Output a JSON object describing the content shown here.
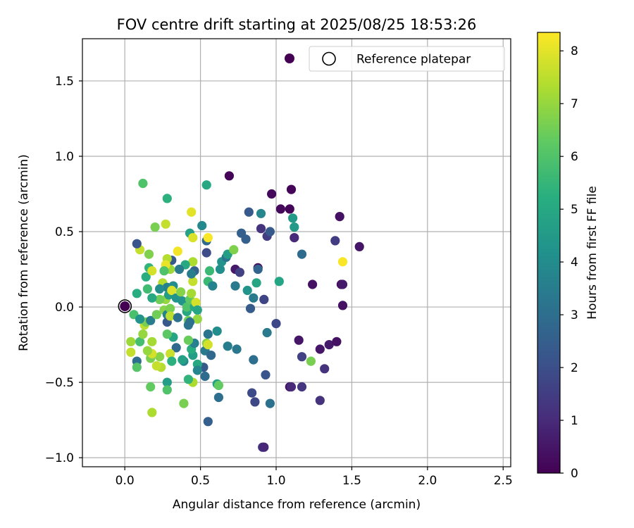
{
  "chart_data": {
    "type": "scatter",
    "title": "FOV centre drift starting at 2025/08/25 18:53:26",
    "xlabel": "Angular distance from reference (arcmin)",
    "ylabel": "Rotation from reference (arcmin)",
    "xlim": [
      -0.28,
      2.55
    ],
    "ylim": [
      -1.06,
      1.78
    ],
    "xticks": [
      0.0,
      0.5,
      1.0,
      1.5,
      2.0,
      2.5
    ],
    "xtick_labels": [
      "0.0",
      "0.5",
      "1.0",
      "1.5",
      "2.0",
      "2.5"
    ],
    "yticks": [
      -1.0,
      -0.5,
      0.0,
      0.5,
      1.0,
      1.5
    ],
    "ytick_labels": [
      "−1.0",
      "−0.5",
      "0.0",
      "0.5",
      "1.0",
      "1.5"
    ],
    "grid": true,
    "legend": {
      "position": "upper-right",
      "entries": [
        "",
        "Reference platepar"
      ]
    },
    "colorbar": {
      "label": "Hours from first FF file",
      "range": [
        0,
        8.35
      ],
      "ticks": [
        0,
        1,
        2,
        3,
        4,
        5,
        6,
        7,
        8
      ],
      "tick_labels": [
        "0",
        "1",
        "2",
        "3",
        "4",
        "5",
        "6",
        "7",
        "8"
      ],
      "colormap": "viridis"
    },
    "reference_point": {
      "x": 0.0,
      "y": 0.0
    },
    "points": [
      {
        "x": 0.69,
        "y": 0.87,
        "c": 0.1
      },
      {
        "x": 0.97,
        "y": 0.75,
        "c": 0.2
      },
      {
        "x": 1.1,
        "y": 0.78,
        "c": 0.1
      },
      {
        "x": 1.03,
        "y": 0.65,
        "c": 0.2
      },
      {
        "x": 1.09,
        "y": 0.65,
        "c": 0.1
      },
      {
        "x": 1.42,
        "y": 0.6,
        "c": 0.4
      },
      {
        "x": 1.55,
        "y": 0.4,
        "c": 0.5
      },
      {
        "x": 1.39,
        "y": 0.44,
        "c": 1.5
      },
      {
        "x": 1.12,
        "y": 0.46,
        "c": 1.0
      },
      {
        "x": 0.9,
        "y": 0.52,
        "c": 1.2
      },
      {
        "x": 0.94,
        "y": 0.47,
        "c": 1.5
      },
      {
        "x": 0.96,
        "y": 0.5,
        "c": 2.3
      },
      {
        "x": 0.82,
        "y": 0.63,
        "c": 2.3
      },
      {
        "x": 0.9,
        "y": 0.62,
        "c": 3.8
      },
      {
        "x": 1.11,
        "y": 0.59,
        "c": 4.5
      },
      {
        "x": 1.12,
        "y": 0.53,
        "c": 4.5
      },
      {
        "x": 0.77,
        "y": 0.49,
        "c": 2.5
      },
      {
        "x": 0.8,
        "y": 0.45,
        "c": 2.5
      },
      {
        "x": 1.17,
        "y": 0.35,
        "c": 2.9
      },
      {
        "x": 1.44,
        "y": 0.3,
        "c": 8.3
      },
      {
        "x": 0.73,
        "y": 0.25,
        "c": 0.6
      },
      {
        "x": 0.76,
        "y": 0.23,
        "c": 1.6
      },
      {
        "x": 0.88,
        "y": 0.26,
        "c": 0.3
      },
      {
        "x": 0.88,
        "y": 0.25,
        "c": 2.7
      },
      {
        "x": 0.87,
        "y": 0.16,
        "c": 4.9
      },
      {
        "x": 1.02,
        "y": 0.17,
        "c": 4.9
      },
      {
        "x": 1.24,
        "y": 0.15,
        "c": 0.4
      },
      {
        "x": 1.43,
        "y": 0.15,
        "c": 0.3
      },
      {
        "x": 1.44,
        "y": 0.15,
        "c": 0.6
      },
      {
        "x": 0.81,
        "y": 0.11,
        "c": 4.3
      },
      {
        "x": 0.85,
        "y": 0.06,
        "c": 3.4
      },
      {
        "x": 0.92,
        "y": 0.05,
        "c": 1.7
      },
      {
        "x": 1.44,
        "y": 0.01,
        "c": 0.4
      },
      {
        "x": 0.83,
        "y": -0.01,
        "c": 2.4
      },
      {
        "x": 1.0,
        "y": -0.11,
        "c": 1.8
      },
      {
        "x": 0.94,
        "y": -0.17,
        "c": 3.4
      },
      {
        "x": 1.15,
        "y": -0.22,
        "c": 0.5
      },
      {
        "x": 1.29,
        "y": -0.28,
        "c": 0.5
      },
      {
        "x": 1.35,
        "y": -0.25,
        "c": 0.6
      },
      {
        "x": 1.4,
        "y": -0.23,
        "c": 0.4
      },
      {
        "x": 1.17,
        "y": -0.33,
        "c": 1.6
      },
      {
        "x": 1.23,
        "y": -0.36,
        "c": 6.6
      },
      {
        "x": 1.32,
        "y": -0.41,
        "c": 1.2
      },
      {
        "x": 0.85,
        "y": -0.35,
        "c": 3.0
      },
      {
        "x": 0.93,
        "y": -0.45,
        "c": 2.2
      },
      {
        "x": 1.09,
        "y": -0.53,
        "c": 0.4
      },
      {
        "x": 1.1,
        "y": -0.53,
        "c": 1.0
      },
      {
        "x": 1.17,
        "y": -0.53,
        "c": 1.3
      },
      {
        "x": 0.84,
        "y": -0.57,
        "c": 1.9
      },
      {
        "x": 0.86,
        "y": -0.63,
        "c": 1.8
      },
      {
        "x": 0.96,
        "y": -0.64,
        "c": 3.1
      },
      {
        "x": 1.29,
        "y": -0.62,
        "c": 1.2
      },
      {
        "x": 0.91,
        "y": -0.93,
        "c": 1.3
      },
      {
        "x": 0.92,
        "y": -0.93,
        "c": 0.9
      },
      {
        "x": 0.68,
        "y": -0.26,
        "c": 3.5
      },
      {
        "x": 0.74,
        "y": -0.28,
        "c": 3.3
      },
      {
        "x": 0.61,
        "y": -0.16,
        "c": 4.0
      },
      {
        "x": 0.62,
        "y": -0.6,
        "c": 3.0
      },
      {
        "x": 0.61,
        "y": -0.51,
        "c": 4.7
      },
      {
        "x": 0.62,
        "y": -0.52,
        "c": 6.3
      },
      {
        "x": 0.55,
        "y": -0.76,
        "c": 2.5
      },
      {
        "x": 0.55,
        "y": -0.18,
        "c": 3.2
      },
      {
        "x": 0.53,
        "y": -0.29,
        "c": 3.4
      },
      {
        "x": 0.57,
        "y": -0.32,
        "c": 2.8
      },
      {
        "x": 0.52,
        "y": -0.4,
        "c": 2.4
      },
      {
        "x": 0.53,
        "y": -0.46,
        "c": 2.9
      },
      {
        "x": 0.54,
        "y": -0.24,
        "c": 6.8
      },
      {
        "x": 0.55,
        "y": -0.25,
        "c": 7.8
      },
      {
        "x": 0.48,
        "y": -0.38,
        "c": 5.0
      },
      {
        "x": 0.45,
        "y": -0.32,
        "c": 4.6
      },
      {
        "x": 0.44,
        "y": -0.28,
        "c": 5.2
      },
      {
        "x": 0.46,
        "y": -0.24,
        "c": 3.6
      },
      {
        "x": 0.42,
        "y": -0.22,
        "c": 6.4
      },
      {
        "x": 0.45,
        "y": -0.5,
        "c": 7.3
      },
      {
        "x": 0.42,
        "y": -0.48,
        "c": 5.4
      },
      {
        "x": 0.39,
        "y": -0.36,
        "c": 3.8
      },
      {
        "x": 0.34,
        "y": -0.27,
        "c": 2.8
      },
      {
        "x": 0.32,
        "y": -0.2,
        "c": 4.9
      },
      {
        "x": 0.28,
        "y": -0.18,
        "c": 6.2
      },
      {
        "x": 0.3,
        "y": -0.31,
        "c": 7.7
      },
      {
        "x": 0.31,
        "y": -0.36,
        "c": 5.3
      },
      {
        "x": 0.28,
        "y": -0.5,
        "c": 4.6
      },
      {
        "x": 0.28,
        "y": -0.55,
        "c": 6.0
      },
      {
        "x": 0.39,
        "y": -0.64,
        "c": 6.6
      },
      {
        "x": 0.24,
        "y": -0.4,
        "c": 7.4
      },
      {
        "x": 0.23,
        "y": -0.33,
        "c": 6.8
      },
      {
        "x": 0.21,
        "y": -0.39,
        "c": 7.6
      },
      {
        "x": 0.18,
        "y": -0.23,
        "c": 7.2
      },
      {
        "x": 0.17,
        "y": -0.34,
        "c": 6.6
      },
      {
        "x": 0.18,
        "y": -0.31,
        "c": 7.8
      },
      {
        "x": 0.15,
        "y": -0.29,
        "c": 7.0
      },
      {
        "x": 0.17,
        "y": -0.53,
        "c": 6.3
      },
      {
        "x": 0.18,
        "y": -0.7,
        "c": 7.3
      },
      {
        "x": 0.08,
        "y": -0.36,
        "c": 3.0
      },
      {
        "x": 0.08,
        "y": -0.4,
        "c": 6.1
      },
      {
        "x": 0.04,
        "y": -0.23,
        "c": 7.1
      },
      {
        "x": 0.04,
        "y": -0.3,
        "c": 7.6
      },
      {
        "x": 0.1,
        "y": -0.23,
        "c": 5.8
      },
      {
        "x": 0.12,
        "y": -0.18,
        "c": 7.0
      },
      {
        "x": 0.13,
        "y": -0.12,
        "c": 7.5
      },
      {
        "x": 0.14,
        "y": -0.1,
        "c": 6.6
      },
      {
        "x": 0.06,
        "y": -0.05,
        "c": 5.9
      },
      {
        "x": 0.1,
        "y": -0.08,
        "c": 4.3
      },
      {
        "x": 0.17,
        "y": -0.09,
        "c": 3.5
      },
      {
        "x": 0.21,
        "y": -0.05,
        "c": 6.5
      },
      {
        "x": 0.26,
        "y": -0.02,
        "c": 6.8
      },
      {
        "x": 0.28,
        "y": -0.05,
        "c": 3.6
      },
      {
        "x": 0.28,
        "y": -0.1,
        "c": 2.3
      },
      {
        "x": 0.3,
        "y": -0.01,
        "c": 6.6
      },
      {
        "x": 0.3,
        "y": -0.06,
        "c": 7.5
      },
      {
        "x": 0.27,
        "y": 0.05,
        "c": 7.0
      },
      {
        "x": 0.23,
        "y": 0.05,
        "c": 6.5
      },
      {
        "x": 0.25,
        "y": 0.16,
        "c": 7.4
      },
      {
        "x": 0.28,
        "y": 0.13,
        "c": 3.6
      },
      {
        "x": 0.29,
        "y": 0.08,
        "c": 4.6
      },
      {
        "x": 0.32,
        "y": 0.14,
        "c": 4.0
      },
      {
        "x": 0.31,
        "y": 0.11,
        "c": 7.9
      },
      {
        "x": 0.34,
        "y": 0.06,
        "c": 4.3
      },
      {
        "x": 0.35,
        "y": -0.07,
        "c": 3.1
      },
      {
        "x": 0.37,
        "y": 0.1,
        "c": 6.8
      },
      {
        "x": 0.38,
        "y": 0.04,
        "c": 4.3
      },
      {
        "x": 0.41,
        "y": -0.03,
        "c": 5.0
      },
      {
        "x": 0.41,
        "y": 0.0,
        "c": 6.0
      },
      {
        "x": 0.42,
        "y": -0.09,
        "c": 6.5
      },
      {
        "x": 0.42,
        "y": -0.12,
        "c": 3.2
      },
      {
        "x": 0.43,
        "y": 0.05,
        "c": 6.2
      },
      {
        "x": 0.44,
        "y": 0.09,
        "c": 7.2
      },
      {
        "x": 0.46,
        "y": 0.0,
        "c": 5.0
      },
      {
        "x": 0.47,
        "y": 0.03,
        "c": 7.8
      },
      {
        "x": 0.48,
        "y": -0.02,
        "c": 4.9
      },
      {
        "x": 0.48,
        "y": -0.08,
        "c": 7.0
      },
      {
        "x": 0.43,
        "y": -0.1,
        "c": 3.1
      },
      {
        "x": 0.45,
        "y": 0.17,
        "c": 7.6
      },
      {
        "x": 0.46,
        "y": 0.24,
        "c": 2.6
      },
      {
        "x": 0.45,
        "y": 0.3,
        "c": 7.3
      },
      {
        "x": 0.44,
        "y": 0.22,
        "c": 3.5
      },
      {
        "x": 0.4,
        "y": 0.28,
        "c": 5.0
      },
      {
        "x": 0.36,
        "y": 0.25,
        "c": 3.4
      },
      {
        "x": 0.35,
        "y": 0.37,
        "c": 8.2
      },
      {
        "x": 0.31,
        "y": 0.31,
        "c": 2.3
      },
      {
        "x": 0.3,
        "y": 0.25,
        "c": 7.1
      },
      {
        "x": 0.28,
        "y": 0.32,
        "c": 7.4
      },
      {
        "x": 0.27,
        "y": 0.28,
        "c": 8.1
      },
      {
        "x": 0.26,
        "y": 0.24,
        "c": 6.0
      },
      {
        "x": 0.23,
        "y": 0.12,
        "c": 4.0
      },
      {
        "x": 0.18,
        "y": 0.06,
        "c": 5.0
      },
      {
        "x": 0.15,
        "y": 0.12,
        "c": 5.7
      },
      {
        "x": 0.14,
        "y": 0.2,
        "c": 5.2
      },
      {
        "x": 0.16,
        "y": 0.26,
        "c": 5.4
      },
      {
        "x": 0.18,
        "y": 0.24,
        "c": 7.8
      },
      {
        "x": 0.16,
        "y": 0.35,
        "c": 6.7
      },
      {
        "x": 0.1,
        "y": 0.38,
        "c": 7.6
      },
      {
        "x": 0.08,
        "y": 0.09,
        "c": 5.2
      },
      {
        "x": 0.08,
        "y": 0.42,
        "c": 2.2
      },
      {
        "x": 0.2,
        "y": 0.53,
        "c": 6.6
      },
      {
        "x": 0.27,
        "y": 0.55,
        "c": 7.6
      },
      {
        "x": 0.28,
        "y": 0.72,
        "c": 5.3
      },
      {
        "x": 0.12,
        "y": 0.82,
        "c": 6.0
      },
      {
        "x": 0.43,
        "y": 0.49,
        "c": 4.8
      },
      {
        "x": 0.45,
        "y": 0.46,
        "c": 7.9
      },
      {
        "x": 0.44,
        "y": 0.63,
        "c": 8.0
      },
      {
        "x": 0.51,
        "y": 0.54,
        "c": 3.9
      },
      {
        "x": 0.54,
        "y": 0.44,
        "c": 2.9
      },
      {
        "x": 0.55,
        "y": 0.46,
        "c": 8.3
      },
      {
        "x": 0.54,
        "y": 0.36,
        "c": 1.9
      },
      {
        "x": 0.55,
        "y": 0.17,
        "c": 5.6
      },
      {
        "x": 0.56,
        "y": 0.24,
        "c": 5.6
      },
      {
        "x": 0.58,
        "y": 0.14,
        "c": 3.7
      },
      {
        "x": 0.63,
        "y": 0.25,
        "c": 4.1
      },
      {
        "x": 0.64,
        "y": 0.3,
        "c": 4.3
      },
      {
        "x": 0.67,
        "y": 0.33,
        "c": 3.2
      },
      {
        "x": 0.68,
        "y": 0.35,
        "c": 4.6
      },
      {
        "x": 0.72,
        "y": 0.38,
        "c": 6.7
      },
      {
        "x": 0.73,
        "y": 0.14,
        "c": 3.4
      },
      {
        "x": 0.54,
        "y": 0.81,
        "c": 5.0
      },
      {
        "x": 0.38,
        "y": -0.35,
        "c": 4.8
      },
      {
        "x": 0.48,
        "y": -0.42,
        "c": 3.8
      }
    ]
  }
}
